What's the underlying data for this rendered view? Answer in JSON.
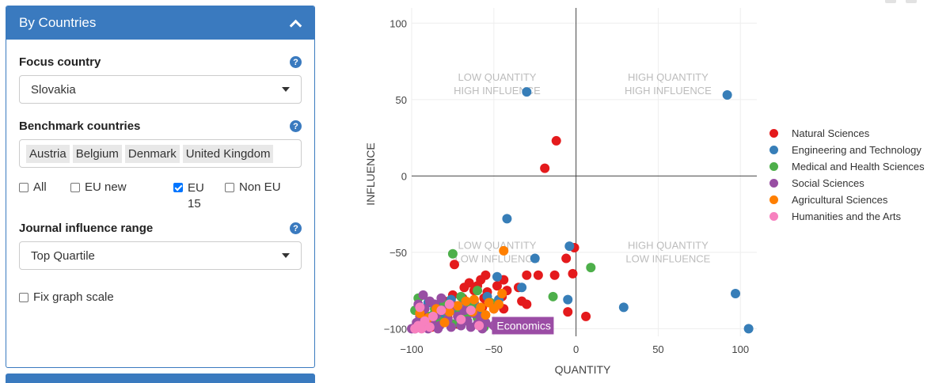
{
  "panel": {
    "title": "By Countries",
    "focus": {
      "label": "Focus country",
      "value": "Slovakia"
    },
    "benchmark": {
      "label": "Benchmark countries",
      "tags": [
        "Austria",
        "Belgium",
        "Denmark",
        "United Kingdom"
      ]
    },
    "groups": [
      {
        "label": "All",
        "checked": false
      },
      {
        "label": "EU new",
        "checked": false
      },
      {
        "label": "EU 15",
        "checked": true
      },
      {
        "label": "Non EU",
        "checked": false
      }
    ],
    "range": {
      "label": "Journal influence range",
      "value": "Top Quartile"
    },
    "fix_scale": {
      "label": "Fix graph scale",
      "checked": false
    }
  },
  "chart_data": {
    "type": "scatter",
    "xlabel": "QUANTITY",
    "ylabel": "INFLUENCE",
    "xlim": [
      -100,
      110
    ],
    "ylim": [
      -105,
      110
    ],
    "xticks": [
      -100,
      -50,
      0,
      50,
      100
    ],
    "yticks": [
      -100,
      -50,
      0,
      50,
      100
    ],
    "grid": true,
    "legend_position": "right",
    "quadrant_labels": [
      {
        "lines": [
          "LOW QUANTITY",
          "HIGH INFLUENCE"
        ],
        "x": -48,
        "y": 55
      },
      {
        "lines": [
          "HIGH QUANTITY",
          "HIGH INFLUENCE"
        ],
        "x": 56,
        "y": 55
      },
      {
        "lines": [
          "LOW QUANTITY",
          "LOW INFLUENCE"
        ],
        "x": -48,
        "y": -55
      },
      {
        "lines": [
          "HIGH QUANTITY",
          "LOW INFLUENCE"
        ],
        "x": 56,
        "y": -55
      }
    ],
    "hover_label": {
      "text": "Economics",
      "x": -55,
      "y": -98,
      "color": "#9b4da5"
    },
    "series": [
      {
        "name": "Natural Sciences",
        "color": "#e41a1c",
        "points": [
          [
            -12,
            23
          ],
          [
            -19,
            5
          ],
          [
            -1,
            -47
          ],
          [
            -6,
            -54
          ],
          [
            -23,
            -65
          ],
          [
            -30,
            -65
          ],
          [
            -2,
            -64
          ],
          [
            -13,
            -65
          ],
          [
            -35,
            -73
          ],
          [
            -44,
            -68
          ],
          [
            -48,
            -72
          ],
          [
            -42,
            -75
          ],
          [
            -55,
            -65
          ],
          [
            -58,
            -68
          ],
          [
            -60,
            -72
          ],
          [
            -62,
            -75
          ],
          [
            -65,
            -70
          ],
          [
            -68,
            -73
          ],
          [
            -54,
            -76
          ],
          [
            -33,
            -82
          ],
          [
            -30,
            -84
          ],
          [
            -5,
            -89
          ],
          [
            6,
            -92
          ],
          [
            -74,
            -58
          ],
          [
            -50,
            -87
          ],
          [
            -44,
            -87
          ],
          [
            -57,
            -86
          ],
          [
            -62,
            -83
          ],
          [
            -69,
            -80
          ],
          [
            -75,
            -78
          ],
          [
            -80,
            -82
          ],
          [
            -85,
            -86
          ],
          [
            -78,
            -93
          ],
          [
            -72,
            -97
          ],
          [
            -95,
            -96
          ],
          [
            -88,
            -99
          ],
          [
            -93,
            -89
          ],
          [
            -60,
            -91
          ],
          [
            -45,
            -79
          ],
          [
            -56,
            -80
          ]
        ]
      },
      {
        "name": "Engineering and Technology",
        "color": "#377eb8",
        "points": [
          [
            -30,
            55
          ],
          [
            92,
            53
          ],
          [
            -42,
            -28
          ],
          [
            -25,
            -54
          ],
          [
            -4,
            -46
          ],
          [
            -48,
            -66
          ],
          [
            -5,
            -81
          ],
          [
            -33,
            -73
          ],
          [
            29,
            -86
          ],
          [
            97,
            -77
          ],
          [
            105,
            -100
          ],
          [
            -47,
            -81
          ],
          [
            -54,
            -79
          ],
          [
            -62,
            -84
          ],
          [
            -68,
            -82
          ],
          [
            -73,
            -88
          ],
          [
            -76,
            -81
          ],
          [
            -82,
            -85
          ],
          [
            -87,
            -91
          ],
          [
            -90,
            -83
          ],
          [
            -80,
            -93
          ],
          [
            -66,
            -91
          ],
          [
            -58,
            -90
          ],
          [
            -94,
            -96
          ],
          [
            -86,
            -97
          ],
          [
            -70,
            -95
          ]
        ]
      },
      {
        "name": "Medical and Health Sciences",
        "color": "#4daf4a",
        "points": [
          [
            -75,
            -51
          ],
          [
            9,
            -60
          ],
          [
            -14,
            -79
          ],
          [
            -60,
            -75
          ],
          [
            -52,
            -83
          ],
          [
            -72,
            -86
          ],
          [
            -78,
            -90
          ],
          [
            -96,
            -80
          ],
          [
            -89,
            -92
          ],
          [
            -83,
            -95
          ],
          [
            -92,
            -98
          ],
          [
            -67,
            -90
          ],
          [
            -64,
            -85
          ],
          [
            -56,
            -99
          ],
          [
            -75,
            -97
          ],
          [
            -98,
            -88
          ],
          [
            -86,
            -87
          ],
          [
            -80,
            -84
          ],
          [
            -70,
            -79
          ],
          [
            -60,
            -93
          ]
        ]
      },
      {
        "name": "Social Sciences",
        "color": "#984ea3",
        "points": [
          [
            -100,
            -100
          ],
          [
            -97,
            -96
          ],
          [
            -95,
            -92
          ],
          [
            -92,
            -87
          ],
          [
            -90,
            -100
          ],
          [
            -88,
            -95
          ],
          [
            -85,
            -91
          ],
          [
            -83,
            -98
          ],
          [
            -80,
            -88
          ],
          [
            -78,
            -94
          ],
          [
            -76,
            -99
          ],
          [
            -74,
            -85
          ],
          [
            -72,
            -92
          ],
          [
            -70,
            -98
          ],
          [
            -68,
            -88
          ],
          [
            -66,
            -95
          ],
          [
            -64,
            -99
          ],
          [
            -62,
            -90
          ],
          [
            -60,
            -97
          ],
          [
            -58,
            -93
          ],
          [
            -57,
            -100
          ],
          [
            -55,
            -96
          ],
          [
            -86,
            -84
          ],
          [
            -82,
            -80
          ],
          [
            -96,
            -84
          ],
          [
            -93,
            -78
          ],
          [
            -89,
            -82
          ],
          [
            -98,
            -100
          ],
          [
            -91,
            -96
          ],
          [
            -84,
            -100
          ]
        ]
      },
      {
        "name": "Agricultural Sciences",
        "color": "#ff7f00",
        "points": [
          [
            -44,
            -49
          ],
          [
            -45,
            -77
          ],
          [
            -47,
            -84
          ],
          [
            -50,
            -87
          ],
          [
            -53,
            -83
          ],
          [
            -58,
            -86
          ],
          [
            -63,
            -89
          ],
          [
            -67,
            -82
          ],
          [
            -72,
            -85
          ],
          [
            -77,
            -89
          ],
          [
            -85,
            -87
          ],
          [
            -90,
            -93
          ],
          [
            -62,
            -81
          ],
          [
            -55,
            -91
          ],
          [
            -95,
            -90
          ],
          [
            -80,
            -96
          ]
        ]
      },
      {
        "name": "Humanities and the Arts",
        "color": "#f781bf",
        "points": [
          [
            -98,
            -100
          ],
          [
            -96,
            -98
          ],
          [
            -94,
            -100
          ],
          [
            -95,
            -86
          ],
          [
            -92,
            -95
          ],
          [
            -87,
            -92
          ],
          [
            -82,
            -88
          ],
          [
            -77,
            -84
          ],
          [
            -70,
            -94
          ],
          [
            -64,
            -88
          ],
          [
            -59,
            -98
          ],
          [
            -89,
            -99
          ]
        ]
      }
    ]
  }
}
